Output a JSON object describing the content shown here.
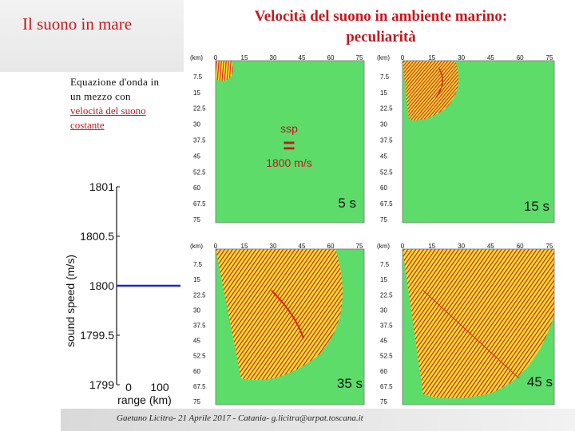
{
  "header": {
    "left_title": "Il suono in mare",
    "main_title_line1": "Velocità del suono in ambiente marino:",
    "main_title_line2": "peculiarità"
  },
  "description": {
    "line1": "Equazione d'onda in",
    "line2": "un mezzo con",
    "line3": "velocità del suono costante"
  },
  "ssp_label": {
    "title": "ssp",
    "equals": "=",
    "value": "1800 m/s"
  },
  "panels": [
    {
      "time": "5 s"
    },
    {
      "time": "15 s"
    },
    {
      "time": "35 s"
    },
    {
      "time": "45 s"
    }
  ],
  "panel_axes": {
    "unit": "(km)",
    "x_ticks": [
      "0",
      "15",
      "30",
      "45",
      "60",
      "75"
    ],
    "y_ticks": [
      "7.5",
      "15",
      "22.5",
      "30",
      "37.5",
      "45",
      "52.5",
      "60",
      "67.5",
      "75"
    ]
  },
  "colors": {
    "title_red": "#c0191f",
    "field_green": "#5ddc6a",
    "wave_yellow": "#f2e233",
    "wave_red": "#d52a1c",
    "profile_blue": "#1f24d6"
  },
  "chart_data": {
    "type": "line",
    "title": "",
    "xlabel": "range (km)",
    "ylabel": "sound speed (m/s)",
    "x_ticks": [
      "0",
      "100"
    ],
    "y_ticks": [
      "1801",
      "1800.5",
      "1800",
      "1799.5",
      "1799"
    ],
    "ylim": [
      1799,
      1801
    ],
    "series": [
      {
        "x": [
          0,
          100
        ],
        "y": [
          1800,
          1800
        ]
      }
    ]
  },
  "footer": {
    "text": "Gaetano Licitra- 21 Aprile 2017 - Catania- g.licitra@arpat.toscana.it"
  }
}
